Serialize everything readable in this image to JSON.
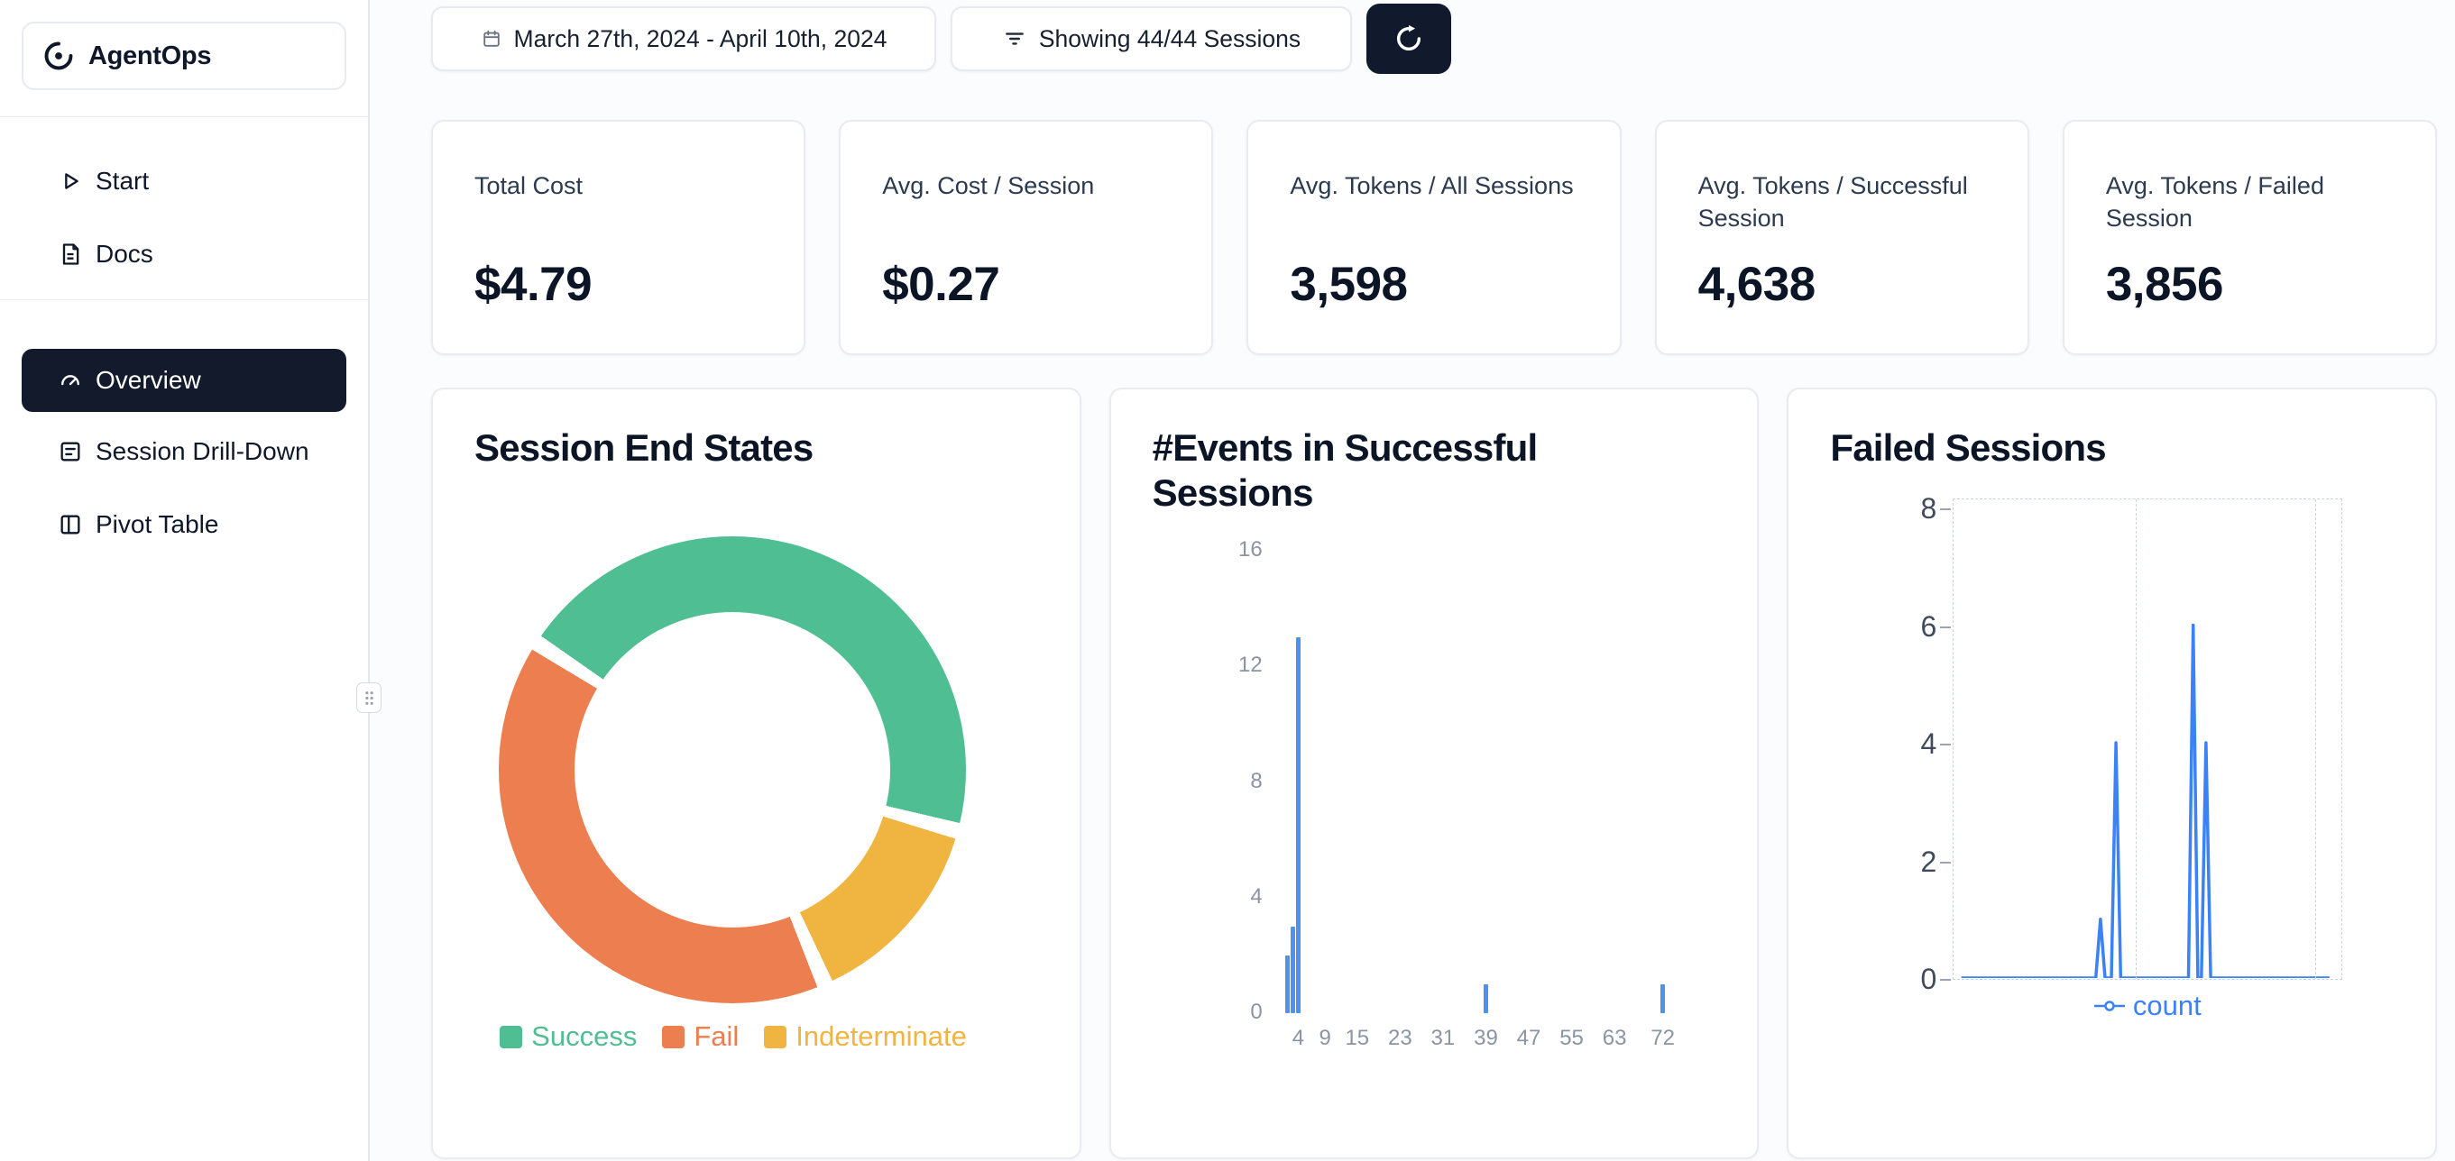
{
  "app": {
    "name": "AgentOps"
  },
  "sidebar": {
    "nav_top": [
      {
        "label": "Start",
        "icon": "play-icon"
      },
      {
        "label": "Docs",
        "icon": "document-icon"
      }
    ],
    "nav_main": [
      {
        "label": "Overview",
        "icon": "gauge-icon",
        "selected": true
      },
      {
        "label": "Session Drill-Down",
        "icon": "session-list-icon",
        "selected": false
      },
      {
        "label": "Pivot Table",
        "icon": "pivot-table-icon",
        "selected": false
      }
    ]
  },
  "toolbar": {
    "date_range_label": "March 27th, 2024 - April 10th, 2024",
    "sessions_filter_label": "Showing 44/44 Sessions",
    "icons": {
      "date": "calendar-icon",
      "filter": "filter-icon",
      "refresh": "refresh-icon"
    }
  },
  "stats": [
    {
      "label": "Total Cost",
      "value": "$4.79"
    },
    {
      "label": "Avg. Cost / Session",
      "value": "$0.27"
    },
    {
      "label": "Avg. Tokens / All Sessions",
      "value": "3,598"
    },
    {
      "label": "Avg. Tokens / Successful Session",
      "value": "4,638"
    },
    {
      "label": "Avg. Tokens / Failed Session",
      "value": "3,856"
    }
  ],
  "chart_data": [
    {
      "type": "pie",
      "variant": "donut",
      "title": "Session End States",
      "labels": [
        "Success",
        "Fail",
        "Indeterminate"
      ],
      "values": [
        20,
        18,
        6
      ],
      "values_note": "counts estimated from arc angles of 44 total sessions; no numeric labels shown",
      "colors": [
        "#4FBE92",
        "#EC7E4F",
        "#F0B441"
      ],
      "legend_position": "bottom",
      "start_angle_deg": 305,
      "gap_deg": 4,
      "draw_order": [
        "Success",
        "Indeterminate",
        "Fail"
      ]
    },
    {
      "type": "bar",
      "title": "#Events in Successful Sessions",
      "x": [
        2,
        3,
        4,
        39,
        72
      ],
      "values": [
        2,
        3,
        13,
        1,
        1
      ],
      "x_ticks": [
        4,
        9,
        15,
        23,
        31,
        39,
        47,
        55,
        63,
        72
      ],
      "y_ticks": [
        0,
        4,
        8,
        12,
        16
      ],
      "xlim": [
        0,
        88
      ],
      "ylim": [
        0,
        16
      ],
      "bar_color": "#4E93E9",
      "grid": false
    },
    {
      "type": "line",
      "title": "Failed Sessions",
      "y_ticks": [
        0,
        2,
        4,
        6,
        8
      ],
      "ylim": [
        0,
        8
      ],
      "x_axis_labels": "none visible",
      "series": [
        {
          "name": "count",
          "color": "#3B82F6",
          "points_x_fraction_y_value": [
            [
              0.02,
              0
            ],
            [
              0.365,
              0
            ],
            [
              0.377,
              1
            ],
            [
              0.389,
              0
            ],
            [
              0.405,
              0
            ],
            [
              0.417,
              4
            ],
            [
              0.429,
              0
            ],
            [
              0.603,
              0
            ],
            [
              0.615,
              6
            ],
            [
              0.627,
              0
            ],
            [
              0.636,
              0
            ],
            [
              0.648,
              4
            ],
            [
              0.66,
              0
            ],
            [
              0.965,
              0
            ]
          ]
        }
      ],
      "legend": {
        "label": "count",
        "position": "bottom"
      },
      "grid_style": "dashed box border with vertical dashed gridlines"
    }
  ]
}
